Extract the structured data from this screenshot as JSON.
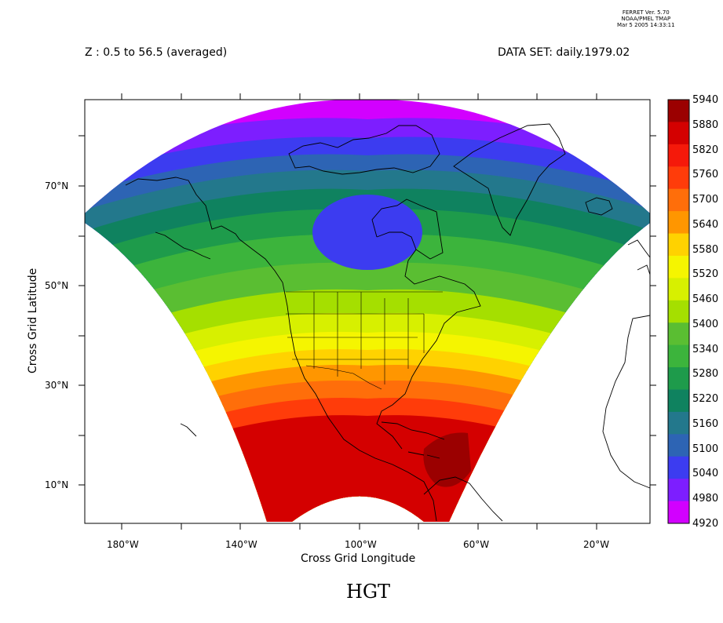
{
  "header": {
    "z_label": "Z : 0.5 to 56.5 (averaged)",
    "dataset_label": "DATA SET: daily.1979.02",
    "ferret_lines": [
      "FERRET Ver. 5.70",
      "NOAA/PMEL TMAP",
      "Mar  5 2005 14:33:11"
    ]
  },
  "chart_data": {
    "type": "heatmap",
    "title": "HGT",
    "xlabel": "Cross Grid Longitude",
    "ylabel": "Cross Grid Latitude",
    "x_ticks": [
      "180°W",
      "140°W",
      "100°W",
      "60°W",
      "20°W"
    ],
    "y_ticks": [
      "70°N",
      "50°N",
      "30°N",
      "10°N"
    ],
    "colorbar": {
      "levels": [
        5940,
        5880,
        5820,
        5760,
        5700,
        5640,
        5580,
        5520,
        5460,
        5400,
        5340,
        5280,
        5220,
        5160,
        5100,
        5040,
        4980,
        4920
      ],
      "colors": [
        "#9b0000",
        "#d40000",
        "#f5190a",
        "#ff3c0a",
        "#ff6e0a",
        "#ff9600",
        "#ffd200",
        "#f5f500",
        "#d7f000",
        "#a5df00",
        "#5abe32",
        "#3cb43c",
        "#1e9b4b",
        "#0f825f",
        "#23788c",
        "#2d64b4",
        "#3c3cf0",
        "#7d1eff",
        "#d200ff"
      ]
    },
    "bands_north_to_south": [
      4920,
      4980,
      5040,
      5100,
      5160,
      5220,
      5280,
      5340,
      5400,
      5460,
      5520,
      5580,
      5640,
      5700,
      5760,
      5820,
      5880
    ],
    "features": {
      "low_center": "Hudson Bay",
      "high_center": "Caribbean",
      "max_level": 5940,
      "min_level": 4920
    },
    "grid": false
  }
}
